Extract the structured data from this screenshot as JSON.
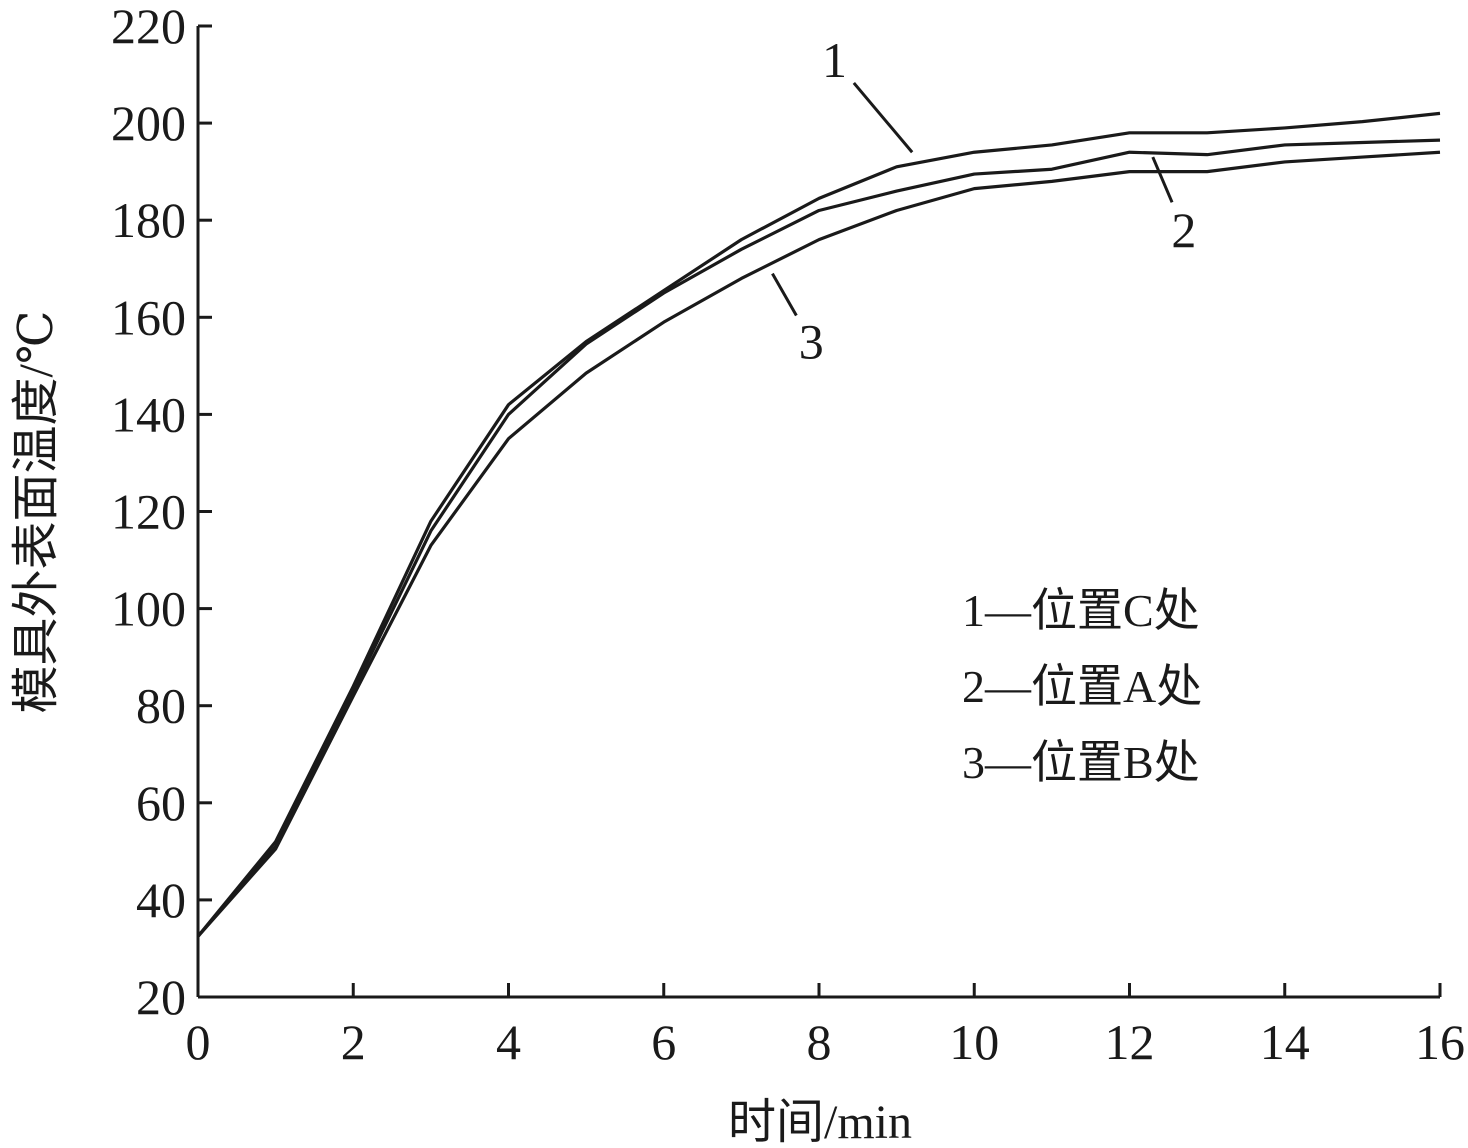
{
  "chart_data": {
    "type": "line",
    "xlabel": "时间/min",
    "ylabel": "模具外表面温度/℃",
    "xlim": [
      0,
      16
    ],
    "ylim": [
      20,
      220
    ],
    "xticks": [
      0,
      2,
      4,
      6,
      8,
      10,
      12,
      14,
      16
    ],
    "yticks": [
      20,
      40,
      60,
      80,
      100,
      120,
      140,
      160,
      180,
      200,
      220
    ],
    "grid": false,
    "legend_position": "center-right",
    "line_color": "#1a1a1a",
    "x": [
      0,
      1,
      2,
      3,
      4,
      5,
      6,
      7,
      8,
      9,
      10,
      11,
      12,
      13,
      14,
      15,
      16
    ],
    "series": [
      {
        "tag": "1",
        "name": "位置C处",
        "legend": "1—位置C处",
        "values": [
          32.5,
          52,
          84,
          118,
          142,
          155,
          165.5,
          176,
          184.5,
          191,
          194,
          195.5,
          198,
          198,
          199,
          200.3,
          202
        ]
      },
      {
        "tag": "2",
        "name": "位置A处",
        "legend": "2—位置A处",
        "values": [
          32.5,
          51,
          83,
          116,
          140,
          154.5,
          165,
          174,
          182,
          186,
          189.5,
          190.5,
          194,
          193.5,
          195.5,
          196,
          196.5
        ]
      },
      {
        "tag": "3",
        "name": "位置B处",
        "legend": "3—位置B处",
        "values": [
          32.5,
          50.5,
          82,
          113,
          135,
          148.5,
          159,
          168,
          176,
          182,
          186.5,
          188,
          190,
          190,
          192,
          193,
          194
        ]
      }
    ],
    "callouts": [
      {
        "series": 0,
        "x": 9.2,
        "y": 194,
        "label_x": 8.2,
        "label_y": 213
      },
      {
        "series": 1,
        "x": 12.3,
        "y": 193,
        "label_x": 12.7,
        "label_y": 178
      },
      {
        "series": 2,
        "x": 7.4,
        "y": 169,
        "label_x": 7.9,
        "label_y": 155
      }
    ]
  }
}
